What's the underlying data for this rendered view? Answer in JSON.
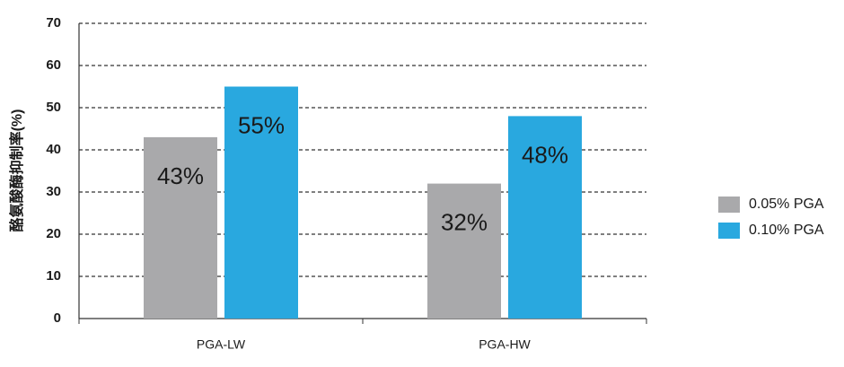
{
  "chart_data": {
    "type": "bar",
    "y_label": "酪氨酸酶抑制率(%)",
    "categories": [
      "PGA-LW",
      "PGA-HW"
    ],
    "series": [
      {
        "name": "0.05% PGA",
        "color": "#a9a9ab",
        "values": [
          43,
          32
        ],
        "value_labels": [
          "43%",
          "32%"
        ]
      },
      {
        "name": "0.10% PGA",
        "color": "#29a8df",
        "values": [
          55,
          48
        ],
        "value_labels": [
          "55%",
          "48%"
        ]
      }
    ],
    "ylim": [
      0,
      70
    ],
    "yticks": [
      0,
      10,
      20,
      30,
      40,
      50,
      60,
      70
    ],
    "grid": true,
    "legend": "right"
  }
}
